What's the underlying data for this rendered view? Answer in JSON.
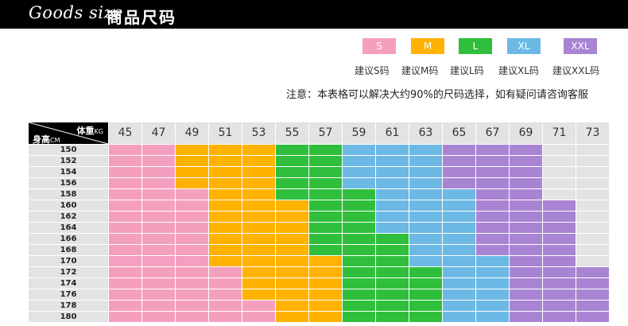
{
  "banner": {
    "title_en": "Goods size",
    "title_cn": "商品尺码"
  },
  "sizes": [
    {
      "key": "S",
      "label": "S",
      "name": "建议S码",
      "color": "#f59fbf"
    },
    {
      "key": "M",
      "label": "M",
      "name": "建议M码",
      "color": "#ffb200"
    },
    {
      "key": "L",
      "label": "L",
      "name": "建议L码",
      "color": "#2fbf3c"
    },
    {
      "key": "XL",
      "label": "XL",
      "name": "建议XL码",
      "color": "#6cb9e5"
    },
    {
      "key": "XXL",
      "label": "XXL",
      "name": "建议XXL码",
      "color": "#a984d3"
    }
  ],
  "empty_color": "#e3e3e3",
  "notice": "注意：本表格可以解决大约90%的尺码选择，如有疑问请咨询客服",
  "corner": {
    "weight_label": "体重",
    "weight_unit": "KG",
    "height_label": "身高",
    "height_unit": "CM"
  },
  "weights": [
    "45",
    "47",
    "49",
    "51",
    "53",
    "55",
    "57",
    "59",
    "61",
    "63",
    "65",
    "67",
    "69",
    "71",
    "73"
  ],
  "heights": [
    "150",
    "152",
    "154",
    "156",
    "158",
    "160",
    "162",
    "164",
    "166",
    "168",
    "170",
    "172",
    "174",
    "176",
    "178",
    "180"
  ],
  "matrix": [
    [
      "S",
      "S",
      "M",
      "M",
      "M",
      "L",
      "L",
      "XL",
      "XL",
      "XL",
      "XXL",
      "XXL",
      "XXL",
      "",
      ""
    ],
    [
      "S",
      "S",
      "M",
      "M",
      "M",
      "L",
      "L",
      "XL",
      "XL",
      "XL",
      "XXL",
      "XXL",
      "XXL",
      "",
      ""
    ],
    [
      "S",
      "S",
      "M",
      "M",
      "M",
      "L",
      "L",
      "XL",
      "XL",
      "XL",
      "XXL",
      "XXL",
      "XXL",
      "",
      ""
    ],
    [
      "S",
      "S",
      "M",
      "M",
      "M",
      "L",
      "L",
      "XL",
      "XL",
      "XL",
      "XXL",
      "XXL",
      "XXL",
      "",
      ""
    ],
    [
      "S",
      "S",
      "S",
      "M",
      "M",
      "L",
      "L",
      "L",
      "XL",
      "XL",
      "XL",
      "XXL",
      "XXL",
      "",
      ""
    ],
    [
      "S",
      "S",
      "S",
      "M",
      "M",
      "M",
      "L",
      "L",
      "XL",
      "XL",
      "XL",
      "XXL",
      "XXL",
      "XXL",
      ""
    ],
    [
      "S",
      "S",
      "S",
      "M",
      "M",
      "M",
      "L",
      "L",
      "XL",
      "XL",
      "XL",
      "XXL",
      "XXL",
      "XXL",
      ""
    ],
    [
      "S",
      "S",
      "S",
      "M",
      "M",
      "M",
      "L",
      "L",
      "XL",
      "XL",
      "XL",
      "XXL",
      "XXL",
      "XXL",
      ""
    ],
    [
      "S",
      "S",
      "S",
      "M",
      "M",
      "M",
      "L",
      "L",
      "L",
      "XL",
      "XL",
      "XXL",
      "XXL",
      "XXL",
      ""
    ],
    [
      "S",
      "S",
      "S",
      "M",
      "M",
      "M",
      "L",
      "L",
      "L",
      "XL",
      "XL",
      "XXL",
      "XXL",
      "XXL",
      ""
    ],
    [
      "S",
      "S",
      "S",
      "M",
      "M",
      "M",
      "M",
      "L",
      "L",
      "XL",
      "XL",
      "XL",
      "XXL",
      "XXL",
      ""
    ],
    [
      "S",
      "S",
      "S",
      "S",
      "M",
      "M",
      "M",
      "L",
      "L",
      "L",
      "XL",
      "XL",
      "XXL",
      "XXL",
      "XXL"
    ],
    [
      "S",
      "S",
      "S",
      "S",
      "M",
      "M",
      "M",
      "L",
      "L",
      "L",
      "XL",
      "XL",
      "XXL",
      "XXL",
      "XXL"
    ],
    [
      "S",
      "S",
      "S",
      "S",
      "M",
      "M",
      "M",
      "L",
      "L",
      "L",
      "XL",
      "XL",
      "XXL",
      "XXL",
      "XXL"
    ],
    [
      "S",
      "S",
      "S",
      "S",
      "S",
      "M",
      "M",
      "L",
      "L",
      "L",
      "XL",
      "XL",
      "XXL",
      "XXL",
      "XXL"
    ],
    [
      "S",
      "S",
      "S",
      "S",
      "S",
      "M",
      "M",
      "L",
      "L",
      "L",
      "XL",
      "XL",
      "XXL",
      "XXL",
      "XXL"
    ]
  ]
}
